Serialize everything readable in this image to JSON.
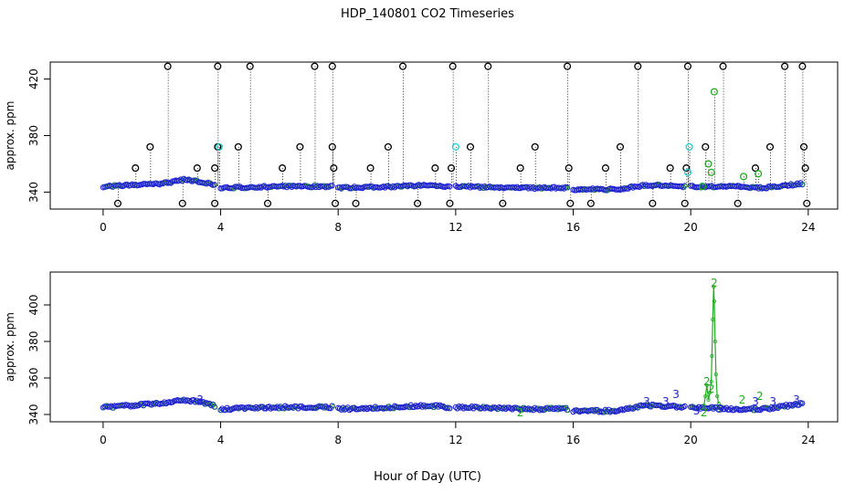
{
  "figure": {
    "title": "HDP_140801  CO2 Timeseries",
    "xlabel": "Hour of Day (UTC)"
  },
  "colors": {
    "frame": "#000000",
    "black_points": "#000000",
    "blue_points": "#1f1fd0",
    "cyan_points": "#22cccc",
    "green_points": "#22aa22",
    "drop_lines": "#000000"
  },
  "chart_data": [
    {
      "type": "scatter",
      "ylabel": "approx. ppm",
      "xlim": [
        -1.8,
        25.0
      ],
      "ylim": [
        328,
        432
      ],
      "x_ticks": [
        0,
        4,
        8,
        12,
        16,
        20,
        24
      ],
      "y_ticks": [
        340,
        380,
        420
      ],
      "grid": false,
      "segments": [
        [
          0,
          3.8
        ],
        [
          4.0,
          7.8
        ],
        [
          8.0,
          11.8
        ],
        [
          12.0,
          15.8
        ],
        [
          16.0,
          19.8
        ],
        [
          20.0,
          23.8
        ]
      ],
      "series": [
        {
          "color_key": "black_points",
          "marker": "circle",
          "points": [
            {
              "x": 0.5,
              "y": 332
            },
            {
              "x": 1.1,
              "y": 357
            },
            {
              "x": 1.6,
              "y": 372
            },
            {
              "x": 2.2,
              "y": 429
            },
            {
              "x": 2.7,
              "y": 332
            },
            {
              "x": 3.2,
              "y": 357
            },
            {
              "x": 3.8,
              "y": 332
            },
            {
              "x": 3.8,
              "y": 357
            },
            {
              "x": 3.9,
              "y": 429
            },
            {
              "x": 3.9,
              "y": 372
            },
            {
              "x": 4.6,
              "y": 372
            },
            {
              "x": 5.0,
              "y": 429
            },
            {
              "x": 5.6,
              "y": 332
            },
            {
              "x": 6.1,
              "y": 357
            },
            {
              "x": 6.7,
              "y": 372
            },
            {
              "x": 7.2,
              "y": 429
            },
            {
              "x": 7.8,
              "y": 429
            },
            {
              "x": 7.8,
              "y": 372
            },
            {
              "x": 7.85,
              "y": 357
            },
            {
              "x": 7.9,
              "y": 332
            },
            {
              "x": 8.6,
              "y": 332
            },
            {
              "x": 9.1,
              "y": 357
            },
            {
              "x": 9.7,
              "y": 372
            },
            {
              "x": 10.2,
              "y": 429
            },
            {
              "x": 10.7,
              "y": 332
            },
            {
              "x": 11.3,
              "y": 357
            },
            {
              "x": 11.8,
              "y": 332
            },
            {
              "x": 11.85,
              "y": 357
            },
            {
              "x": 11.9,
              "y": 429
            },
            {
              "x": 12.5,
              "y": 372
            },
            {
              "x": 13.1,
              "y": 429
            },
            {
              "x": 13.6,
              "y": 332
            },
            {
              "x": 14.2,
              "y": 357
            },
            {
              "x": 14.7,
              "y": 372
            },
            {
              "x": 15.8,
              "y": 429
            },
            {
              "x": 15.85,
              "y": 357
            },
            {
              "x": 15.9,
              "y": 332
            },
            {
              "x": 16.6,
              "y": 332
            },
            {
              "x": 17.1,
              "y": 357
            },
            {
              "x": 17.6,
              "y": 372
            },
            {
              "x": 18.2,
              "y": 429
            },
            {
              "x": 18.7,
              "y": 332
            },
            {
              "x": 19.3,
              "y": 357
            },
            {
              "x": 19.8,
              "y": 332
            },
            {
              "x": 19.85,
              "y": 357
            },
            {
              "x": 19.9,
              "y": 429
            },
            {
              "x": 20.5,
              "y": 372
            },
            {
              "x": 21.1,
              "y": 429
            },
            {
              "x": 21.6,
              "y": 332
            },
            {
              "x": 22.2,
              "y": 357
            },
            {
              "x": 22.7,
              "y": 372
            },
            {
              "x": 23.2,
              "y": 429
            },
            {
              "x": 23.8,
              "y": 429
            },
            {
              "x": 23.85,
              "y": 372
            },
            {
              "x": 23.9,
              "y": 357
            },
            {
              "x": 23.95,
              "y": 332
            }
          ]
        },
        {
          "color_key": "cyan_points",
          "marker": "circle",
          "points": [
            {
              "x": 3.95,
              "y": 372
            },
            {
              "x": 12.0,
              "y": 372
            },
            {
              "x": 19.95,
              "y": 372
            },
            {
              "x": 19.9,
              "y": 354
            }
          ]
        },
        {
          "color_key": "green_points",
          "marker": "circle",
          "points": [
            {
              "x": 20.6,
              "y": 360
            },
            {
              "x": 20.8,
              "y": 411
            },
            {
              "x": 20.7,
              "y": 354
            },
            {
              "x": 21.8,
              "y": 351
            },
            {
              "x": 22.3,
              "y": 353
            },
            {
              "x": 20.4,
              "y": 344
            }
          ]
        }
      ],
      "baseline": {
        "color_key": "blue_points",
        "marker": "circle",
        "profile_points": [
          {
            "x": 0.0,
            "y": 344
          },
          {
            "x": 1.0,
            "y": 345
          },
          {
            "x": 2.0,
            "y": 346
          },
          {
            "x": 2.8,
            "y": 349
          },
          {
            "x": 3.6,
            "y": 346
          },
          {
            "x": 4.0,
            "y": 343
          },
          {
            "x": 6.0,
            "y": 344
          },
          {
            "x": 7.8,
            "y": 344
          },
          {
            "x": 8.0,
            "y": 343
          },
          {
            "x": 10.0,
            "y": 344
          },
          {
            "x": 11.0,
            "y": 345
          },
          {
            "x": 11.8,
            "y": 344
          },
          {
            "x": 12.0,
            "y": 344
          },
          {
            "x": 14.5,
            "y": 343
          },
          {
            "x": 15.8,
            "y": 343
          },
          {
            "x": 16.0,
            "y": 342
          },
          {
            "x": 17.5,
            "y": 342
          },
          {
            "x": 18.5,
            "y": 345
          },
          {
            "x": 19.8,
            "y": 344
          },
          {
            "x": 20.0,
            "y": 344
          },
          {
            "x": 21.5,
            "y": 344
          },
          {
            "x": 22.5,
            "y": 343
          },
          {
            "x": 23.8,
            "y": 346
          }
        ]
      }
    },
    {
      "type": "scatter",
      "ylabel": "approx. ppm",
      "xlim": [
        -1.8,
        25.0
      ],
      "ylim": [
        336,
        418
      ],
      "x_ticks": [
        0,
        4,
        8,
        12,
        16,
        20,
        24
      ],
      "y_ticks": [
        340,
        360,
        380,
        400
      ],
      "grid": false,
      "segments": [
        [
          0,
          3.8
        ],
        [
          4.0,
          7.8
        ],
        [
          8.0,
          11.8
        ],
        [
          12.0,
          15.8
        ],
        [
          16.0,
          19.8
        ],
        [
          20.0,
          23.8
        ]
      ],
      "baseline": {
        "color_key": "blue_points",
        "marker": "circle",
        "profile_points": [
          {
            "x": 0.0,
            "y": 344
          },
          {
            "x": 1.0,
            "y": 345
          },
          {
            "x": 2.0,
            "y": 346
          },
          {
            "x": 2.8,
            "y": 348
          },
          {
            "x": 3.6,
            "y": 346
          },
          {
            "x": 4.0,
            "y": 343
          },
          {
            "x": 6.0,
            "y": 344
          },
          {
            "x": 7.8,
            "y": 344
          },
          {
            "x": 8.0,
            "y": 343
          },
          {
            "x": 10.0,
            "y": 344
          },
          {
            "x": 11.0,
            "y": 345
          },
          {
            "x": 11.8,
            "y": 344
          },
          {
            "x": 12.0,
            "y": 344
          },
          {
            "x": 14.5,
            "y": 343
          },
          {
            "x": 15.8,
            "y": 343
          },
          {
            "x": 16.0,
            "y": 342
          },
          {
            "x": 17.5,
            "y": 342
          },
          {
            "x": 18.5,
            "y": 345
          },
          {
            "x": 19.8,
            "y": 344
          },
          {
            "x": 20.0,
            "y": 344
          },
          {
            "x": 21.5,
            "y": 343
          },
          {
            "x": 22.5,
            "y": 343
          },
          {
            "x": 23.8,
            "y": 346
          }
        ]
      },
      "spike": {
        "color_key": "green_points",
        "points": [
          {
            "x": 20.45,
            "y": 345
          },
          {
            "x": 20.5,
            "y": 350
          },
          {
            "x": 20.55,
            "y": 356
          },
          {
            "x": 20.6,
            "y": 348
          },
          {
            "x": 20.65,
            "y": 352
          },
          {
            "x": 20.7,
            "y": 358
          },
          {
            "x": 20.72,
            "y": 372
          },
          {
            "x": 20.75,
            "y": 392
          },
          {
            "x": 20.78,
            "y": 410
          },
          {
            "x": 20.8,
            "y": 402
          },
          {
            "x": 20.83,
            "y": 380
          },
          {
            "x": 20.86,
            "y": 362
          },
          {
            "x": 20.9,
            "y": 350
          },
          {
            "x": 20.95,
            "y": 346
          }
        ]
      },
      "annotations": [
        {
          "text": "2",
          "x": 20.8,
          "y": 412,
          "color_key": "green_points"
        },
        {
          "text": "2",
          "x": 20.55,
          "y": 358,
          "color_key": "green_points"
        },
        {
          "text": "2",
          "x": 20.7,
          "y": 354,
          "color_key": "green_points"
        },
        {
          "text": "2",
          "x": 21.75,
          "y": 348,
          "color_key": "green_points"
        },
        {
          "text": "2",
          "x": 22.35,
          "y": 350,
          "color_key": "green_points"
        },
        {
          "text": "2",
          "x": 20.45,
          "y": 341,
          "color_key": "green_points"
        },
        {
          "text": "2",
          "x": 14.2,
          "y": 341,
          "color_key": "green_points"
        },
        {
          "text": "3",
          "x": 19.5,
          "y": 351,
          "color_key": "blue_points"
        },
        {
          "text": "3",
          "x": 18.5,
          "y": 347,
          "color_key": "blue_points"
        },
        {
          "text": "3",
          "x": 19.15,
          "y": 347,
          "color_key": "blue_points"
        },
        {
          "text": "3",
          "x": 22.2,
          "y": 347,
          "color_key": "blue_points"
        },
        {
          "text": "3",
          "x": 22.8,
          "y": 347,
          "color_key": "blue_points"
        },
        {
          "text": "3",
          "x": 20.2,
          "y": 342,
          "color_key": "blue_points"
        },
        {
          "text": "3",
          "x": 23.6,
          "y": 348,
          "color_key": "blue_points"
        },
        {
          "text": "3",
          "x": 21.0,
          "y": 343,
          "color_key": "blue_points"
        },
        {
          "text": "3",
          "x": 3.3,
          "y": 348,
          "color_key": "blue_points"
        }
      ]
    }
  ]
}
